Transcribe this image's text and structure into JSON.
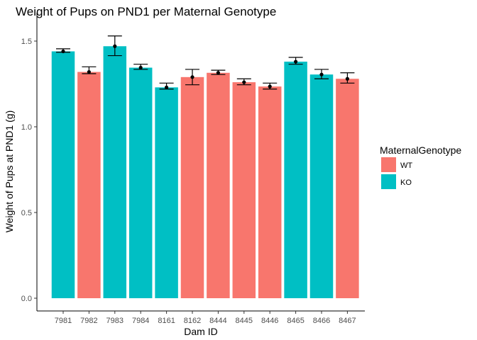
{
  "chart_data": {
    "type": "bar",
    "title": "Weight of Pups on PND1 per Maternal Genotype",
    "xlabel": "Dam ID",
    "ylabel": "Weight of Pups at PND1 (g)",
    "ylim": [
      0,
      1.6
    ],
    "yticks": [
      "0.0",
      "0.5",
      "1.0",
      "1.5"
    ],
    "grid": false,
    "legend_position": "right",
    "legend_title": "MaternalGenotype",
    "legend": [
      {
        "label": "WT",
        "color": "#F8766D"
      },
      {
        "label": "KO",
        "color": "#00BFC4"
      }
    ],
    "categories": [
      "7981",
      "7982",
      "7983",
      "7984",
      "8161",
      "8162",
      "8444",
      "8445",
      "8446",
      "8465",
      "8466",
      "8467"
    ],
    "genotype": [
      "KO",
      "WT",
      "KO",
      "KO",
      "KO",
      "WT",
      "WT",
      "WT",
      "WT",
      "KO",
      "KO",
      "WT"
    ],
    "values": [
      1.44,
      1.32,
      1.47,
      1.345,
      1.23,
      1.29,
      1.315,
      1.26,
      1.235,
      1.38,
      1.305,
      1.28
    ],
    "error_low": [
      1.435,
      1.31,
      1.415,
      1.335,
      1.22,
      1.245,
      1.305,
      1.245,
      1.22,
      1.365,
      1.28,
      1.255
    ],
    "error_high": [
      1.455,
      1.35,
      1.53,
      1.365,
      1.255,
      1.335,
      1.33,
      1.28,
      1.255,
      1.405,
      1.335,
      1.315
    ]
  }
}
